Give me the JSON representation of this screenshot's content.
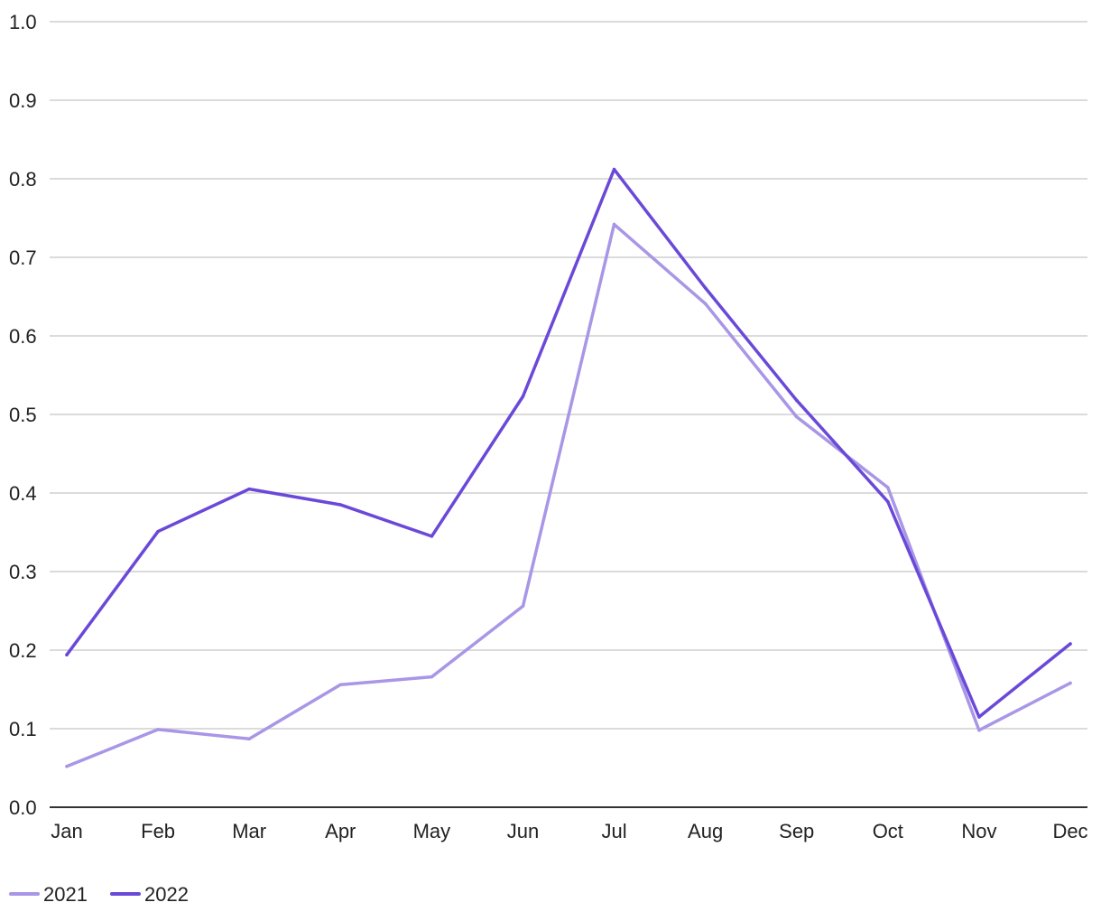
{
  "chart_data": {
    "type": "line",
    "title": "",
    "xlabel": "",
    "ylabel": "",
    "categories": [
      "Jan",
      "Feb",
      "Mar",
      "Apr",
      "May",
      "Jun",
      "Jul",
      "Aug",
      "Sep",
      "Oct",
      "Nov",
      "Dec"
    ],
    "ylim": [
      0,
      1.0
    ],
    "yticks": [
      "0.0",
      "0.1",
      "0.2",
      "0.3",
      "0.4",
      "0.5",
      "0.6",
      "0.7",
      "0.8",
      "0.9",
      "1.0"
    ],
    "grid": true,
    "legend_position": "bottom-left",
    "series": [
      {
        "name": "2021",
        "color": "#a996e6",
        "values": [
          0.052,
          0.099,
          0.087,
          0.156,
          0.166,
          0.256,
          0.742,
          0.641,
          0.497,
          0.407,
          0.098,
          0.158
        ]
      },
      {
        "name": "2022",
        "color": "#6a49d8",
        "values": [
          0.194,
          0.351,
          0.405,
          0.385,
          0.345,
          0.523,
          0.812,
          0.661,
          0.518,
          0.389,
          0.115,
          0.208
        ]
      }
    ]
  }
}
